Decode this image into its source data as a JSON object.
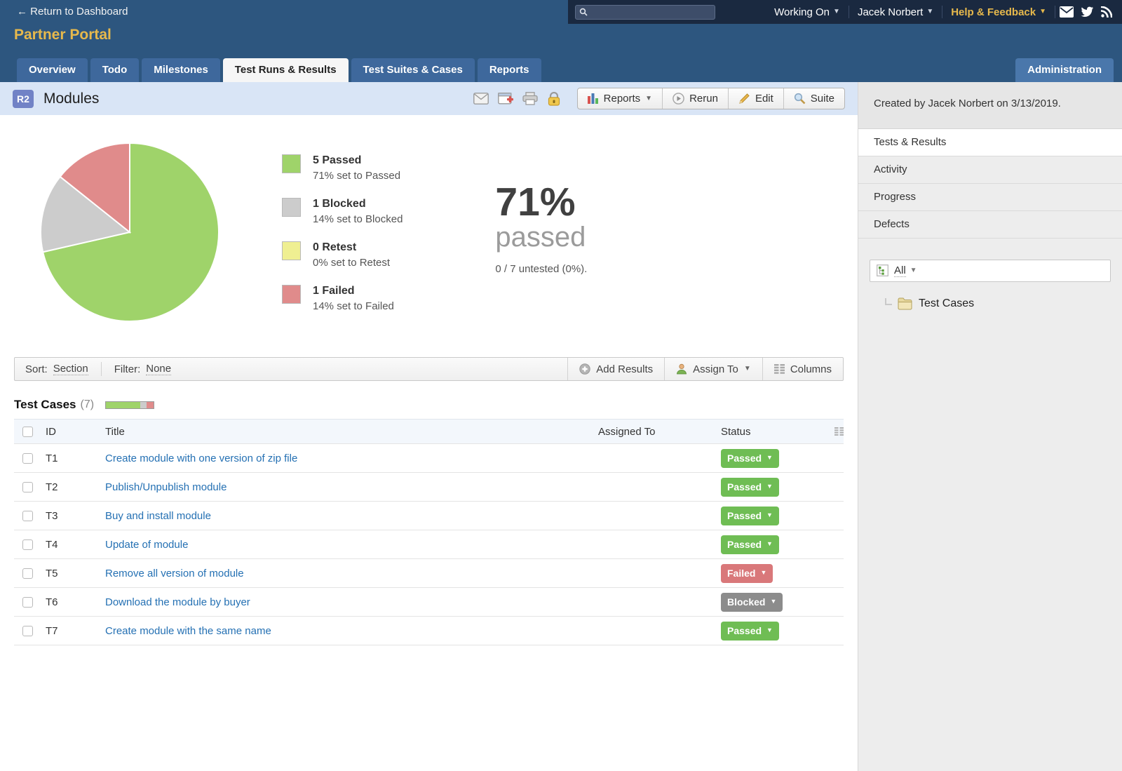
{
  "topbar": {
    "return_link": "← Return to Dashboard",
    "portal_title": "Partner Portal",
    "working_on": "Working On",
    "user_name": "Jacek Norbert",
    "help_feedback": "Help & Feedback"
  },
  "tabs": {
    "items": [
      {
        "label": "Overview",
        "active": false
      },
      {
        "label": "Todo",
        "active": false
      },
      {
        "label": "Milestones",
        "active": false
      },
      {
        "label": "Test Runs & Results",
        "active": true
      },
      {
        "label": "Test Suites & Cases",
        "active": false
      },
      {
        "label": "Reports",
        "active": false
      }
    ],
    "admin_label": "Administration"
  },
  "page_header": {
    "badge": "R2",
    "title": "Modules",
    "icons": [
      "email-icon",
      "window-add-icon",
      "print-icon",
      "lock-icon"
    ],
    "buttons": {
      "reports": "Reports",
      "rerun": "Rerun",
      "edit": "Edit",
      "suite": "Suite"
    }
  },
  "chart_data": {
    "type": "pie",
    "title": "Test run results for run R2 Modules",
    "labels": [
      "Passed",
      "Blocked",
      "Retest",
      "Failed"
    ],
    "values": [
      5,
      1,
      0,
      1
    ],
    "percent_labels": [
      "71%",
      "14%",
      "0%",
      "14%"
    ],
    "colors": [
      "#9fd36a",
      "#cccccc",
      "#efef92",
      "#e08b8b"
    ],
    "legend_position": "right",
    "legend": [
      {
        "label": "5 Passed",
        "detail": "71% set to Passed",
        "color": "#9fd36a"
      },
      {
        "label": "1 Blocked",
        "detail": "14% set to Blocked",
        "color": "#cccccc"
      },
      {
        "label": "0 Retest",
        "detail": "0% set to Retest",
        "color": "#efef92"
      },
      {
        "label": "1 Failed",
        "detail": "14% set to Failed",
        "color": "#e08b8b"
      }
    ],
    "summary": {
      "percent": "71%",
      "word": "passed",
      "untested": "0 / 7 untested (0%)."
    }
  },
  "toolbar": {
    "sort_label": "Sort:",
    "sort_value": "Section",
    "filter_label": "Filter:",
    "filter_value": "None",
    "add_results": "Add Results",
    "assign_to": "Assign To",
    "columns": "Columns"
  },
  "table": {
    "section_title": "Test Cases",
    "count": "(7)",
    "headers": {
      "id": "ID",
      "title": "Title",
      "assigned_to": "Assigned To",
      "status": "Status"
    },
    "rows": [
      {
        "id": "T1",
        "title": "Create module with one version of zip file",
        "assigned_to": "",
        "status": "Passed"
      },
      {
        "id": "T2",
        "title": "Publish/Unpublish module",
        "assigned_to": "",
        "status": "Passed"
      },
      {
        "id": "T3",
        "title": "Buy and install module",
        "assigned_to": "",
        "status": "Passed"
      },
      {
        "id": "T4",
        "title": "Update of module",
        "assigned_to": "",
        "status": "Passed"
      },
      {
        "id": "T5",
        "title": "Remove all version of module",
        "assigned_to": "",
        "status": "Failed"
      },
      {
        "id": "T6",
        "title": "Download the module by buyer",
        "assigned_to": "",
        "status": "Blocked"
      },
      {
        "id": "T7",
        "title": "Create module with the same name",
        "assigned_to": "",
        "status": "Passed"
      }
    ]
  },
  "status_colors": {
    "Passed": "#6fbd54",
    "Failed": "#d9787a",
    "Blocked": "#8c8c8c"
  },
  "sidebar": {
    "created_by": "Created by Jacek Norbert on 3/13/2019.",
    "nav_items": [
      {
        "label": "Tests & Results",
        "active": true
      },
      {
        "label": "Activity",
        "active": false
      },
      {
        "label": "Progress",
        "active": false
      },
      {
        "label": "Defects",
        "active": false
      }
    ],
    "filter_value": "All",
    "tree_item_label": "Test Cases"
  }
}
